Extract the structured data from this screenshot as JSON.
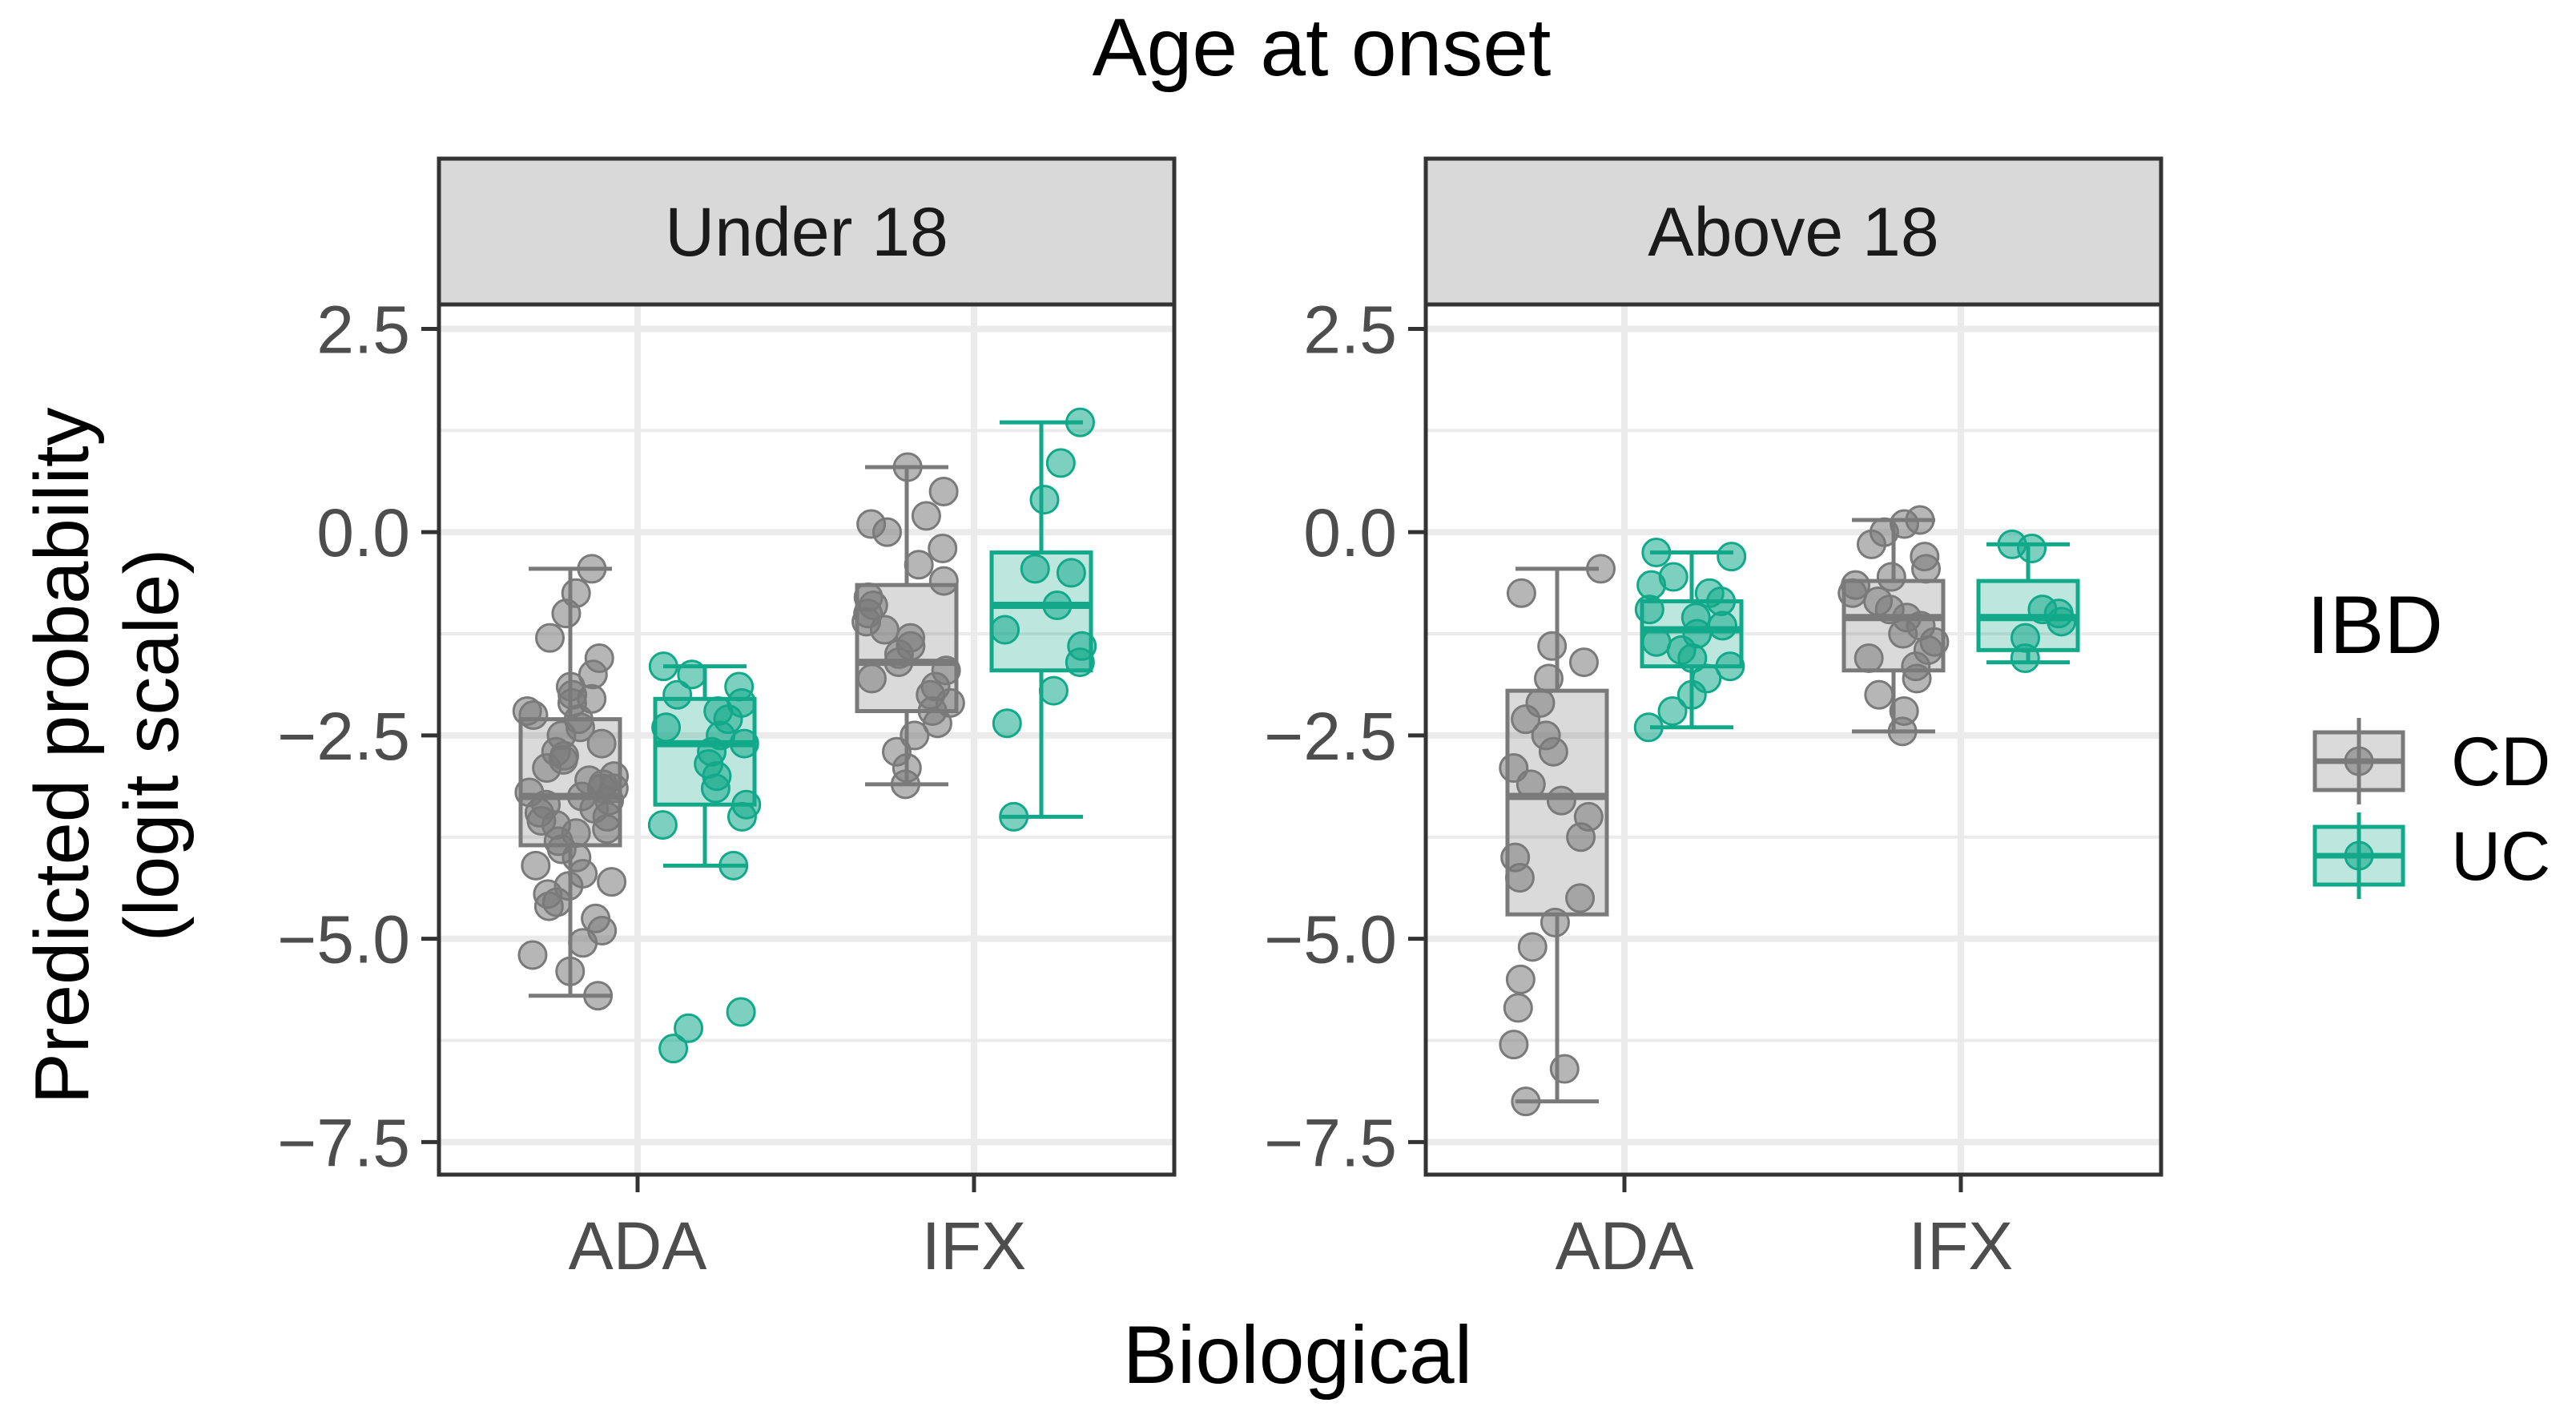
{
  "chart_data": {
    "type": "boxplot",
    "title": "Age at onset",
    "xlabel": "Biological",
    "ylabel_lines": [
      "Predicted probability",
      "(logit scale)"
    ],
    "ylim": [
      -7.9,
      2.8
    ],
    "yticks": [
      2.5,
      0.0,
      -2.5,
      -5.0,
      -7.5
    ],
    "ytick_labels": [
      "2.5",
      "0.0",
      "−2.5",
      "−5.0",
      "−7.5"
    ],
    "categories": [
      "ADA",
      "IFX"
    ],
    "legend": {
      "title": "IBD",
      "position": "right",
      "items": [
        {
          "name": "CD",
          "color": "#7a7a7a"
        },
        {
          "name": "UC",
          "color": "#12a98a"
        }
      ]
    },
    "colors": {
      "CD": "#7a7a7a",
      "UC": "#12a98a",
      "strip_fill": "#d9d9d9",
      "grid": "#ebebeb"
    },
    "panels": [
      {
        "label": "Under 18",
        "groups": [
          {
            "category": "ADA",
            "series": "CD",
            "whisker_low": -5.7,
            "q1": -3.85,
            "median": -3.25,
            "q3": -2.3,
            "whisker_high": -0.45,
            "points": [
              -0.45,
              -0.75,
              -1.0,
              -1.3,
              -1.55,
              -1.75,
              -1.9,
              -2.0,
              -2.1,
              -2.2,
              -2.3,
              -2.4,
              -2.5,
              -2.6,
              -2.7,
              -2.8,
              -2.9,
              -3.0,
              -3.05,
              -3.1,
              -3.15,
              -3.2,
              -3.25,
              -3.3,
              -3.35,
              -3.4,
              -3.45,
              -3.5,
              -3.55,
              -3.6,
              -3.7,
              -3.8,
              -3.9,
              -4.0,
              -4.1,
              -4.2,
              -4.3,
              -4.45,
              -4.6,
              -4.75,
              -4.9,
              -5.05,
              -5.2,
              -5.4,
              -5.7,
              -2.05,
              -2.25,
              -2.75,
              -3.15,
              -3.65,
              -4.35,
              -4.55
            ]
          },
          {
            "category": "ADA",
            "series": "UC",
            "whisker_low": -4.1,
            "q1": -3.35,
            "median": -2.6,
            "q3": -2.05,
            "whisker_high": -1.65,
            "points": [
              -1.65,
              -1.75,
              -1.9,
              -2.0,
              -2.1,
              -2.2,
              -2.3,
              -2.4,
              -2.5,
              -2.6,
              -2.7,
              -2.85,
              -3.0,
              -3.15,
              -3.35,
              -3.5,
              -3.6,
              -4.1,
              -5.9,
              -6.1,
              -6.35
            ]
          },
          {
            "category": "IFX",
            "series": "CD",
            "whisker_low": -3.1,
            "q1": -2.2,
            "median": -1.6,
            "q3": -0.65,
            "whisker_high": 0.8,
            "points": [
              0.8,
              0.5,
              0.2,
              0.1,
              0.0,
              -0.2,
              -0.4,
              -0.6,
              -0.8,
              -0.9,
              -1.0,
              -1.1,
              -1.2,
              -1.3,
              -1.4,
              -1.5,
              -1.6,
              -1.7,
              -1.8,
              -1.9,
              -2.0,
              -2.1,
              -2.2,
              -2.35,
              -2.5,
              -2.7,
              -2.9,
              -3.1
            ]
          },
          {
            "category": "IFX",
            "series": "UC",
            "whisker_low": -3.5,
            "q1": -1.7,
            "median": -0.9,
            "q3": -0.25,
            "whisker_high": 1.35,
            "points": [
              1.35,
              0.85,
              0.4,
              -0.45,
              -0.5,
              -0.9,
              -1.2,
              -1.4,
              -1.6,
              -1.95,
              -2.35,
              -3.5
            ]
          }
        ]
      },
      {
        "label": "Above 18",
        "groups": [
          {
            "category": "ADA",
            "series": "CD",
            "whisker_low": -7.0,
            "q1": -4.7,
            "median": -3.25,
            "q3": -1.95,
            "whisker_high": -0.45,
            "points": [
              -0.45,
              -0.75,
              -1.4,
              -1.6,
              -1.8,
              -2.1,
              -2.3,
              -2.5,
              -2.7,
              -2.9,
              -3.1,
              -3.3,
              -3.5,
              -3.75,
              -4.0,
              -4.25,
              -4.5,
              -4.8,
              -5.1,
              -5.5,
              -5.85,
              -6.3,
              -6.6,
              -7.0
            ]
          },
          {
            "category": "ADA",
            "series": "UC",
            "whisker_low": -2.4,
            "q1": -1.65,
            "median": -1.2,
            "q3": -0.85,
            "whisker_high": -0.25,
            "points": [
              -0.25,
              -0.3,
              -0.55,
              -0.65,
              -0.75,
              -0.85,
              -0.95,
              -1.05,
              -1.15,
              -1.25,
              -1.35,
              -1.45,
              -1.55,
              -1.65,
              -1.8,
              -2.0,
              -2.2,
              -2.4
            ]
          },
          {
            "category": "IFX",
            "series": "CD",
            "whisker_low": -2.45,
            "q1": -1.7,
            "median": -1.05,
            "q3": -0.6,
            "whisker_high": 0.15,
            "points": [
              0.15,
              0.1,
              0.0,
              -0.15,
              -0.3,
              -0.45,
              -0.55,
              -0.65,
              -0.75,
              -0.85,
              -0.95,
              -1.05,
              -1.15,
              -1.25,
              -1.35,
              -1.45,
              -1.55,
              -1.65,
              -1.8,
              -2.0,
              -2.2,
              -2.45
            ]
          },
          {
            "category": "IFX",
            "series": "UC",
            "whisker_low": -1.6,
            "q1": -1.45,
            "median": -1.05,
            "q3": -0.6,
            "whisker_high": -0.15,
            "points": [
              -0.15,
              -0.2,
              -0.95,
              -1.0,
              -1.1,
              -1.3,
              -1.55
            ]
          }
        ]
      }
    ]
  }
}
